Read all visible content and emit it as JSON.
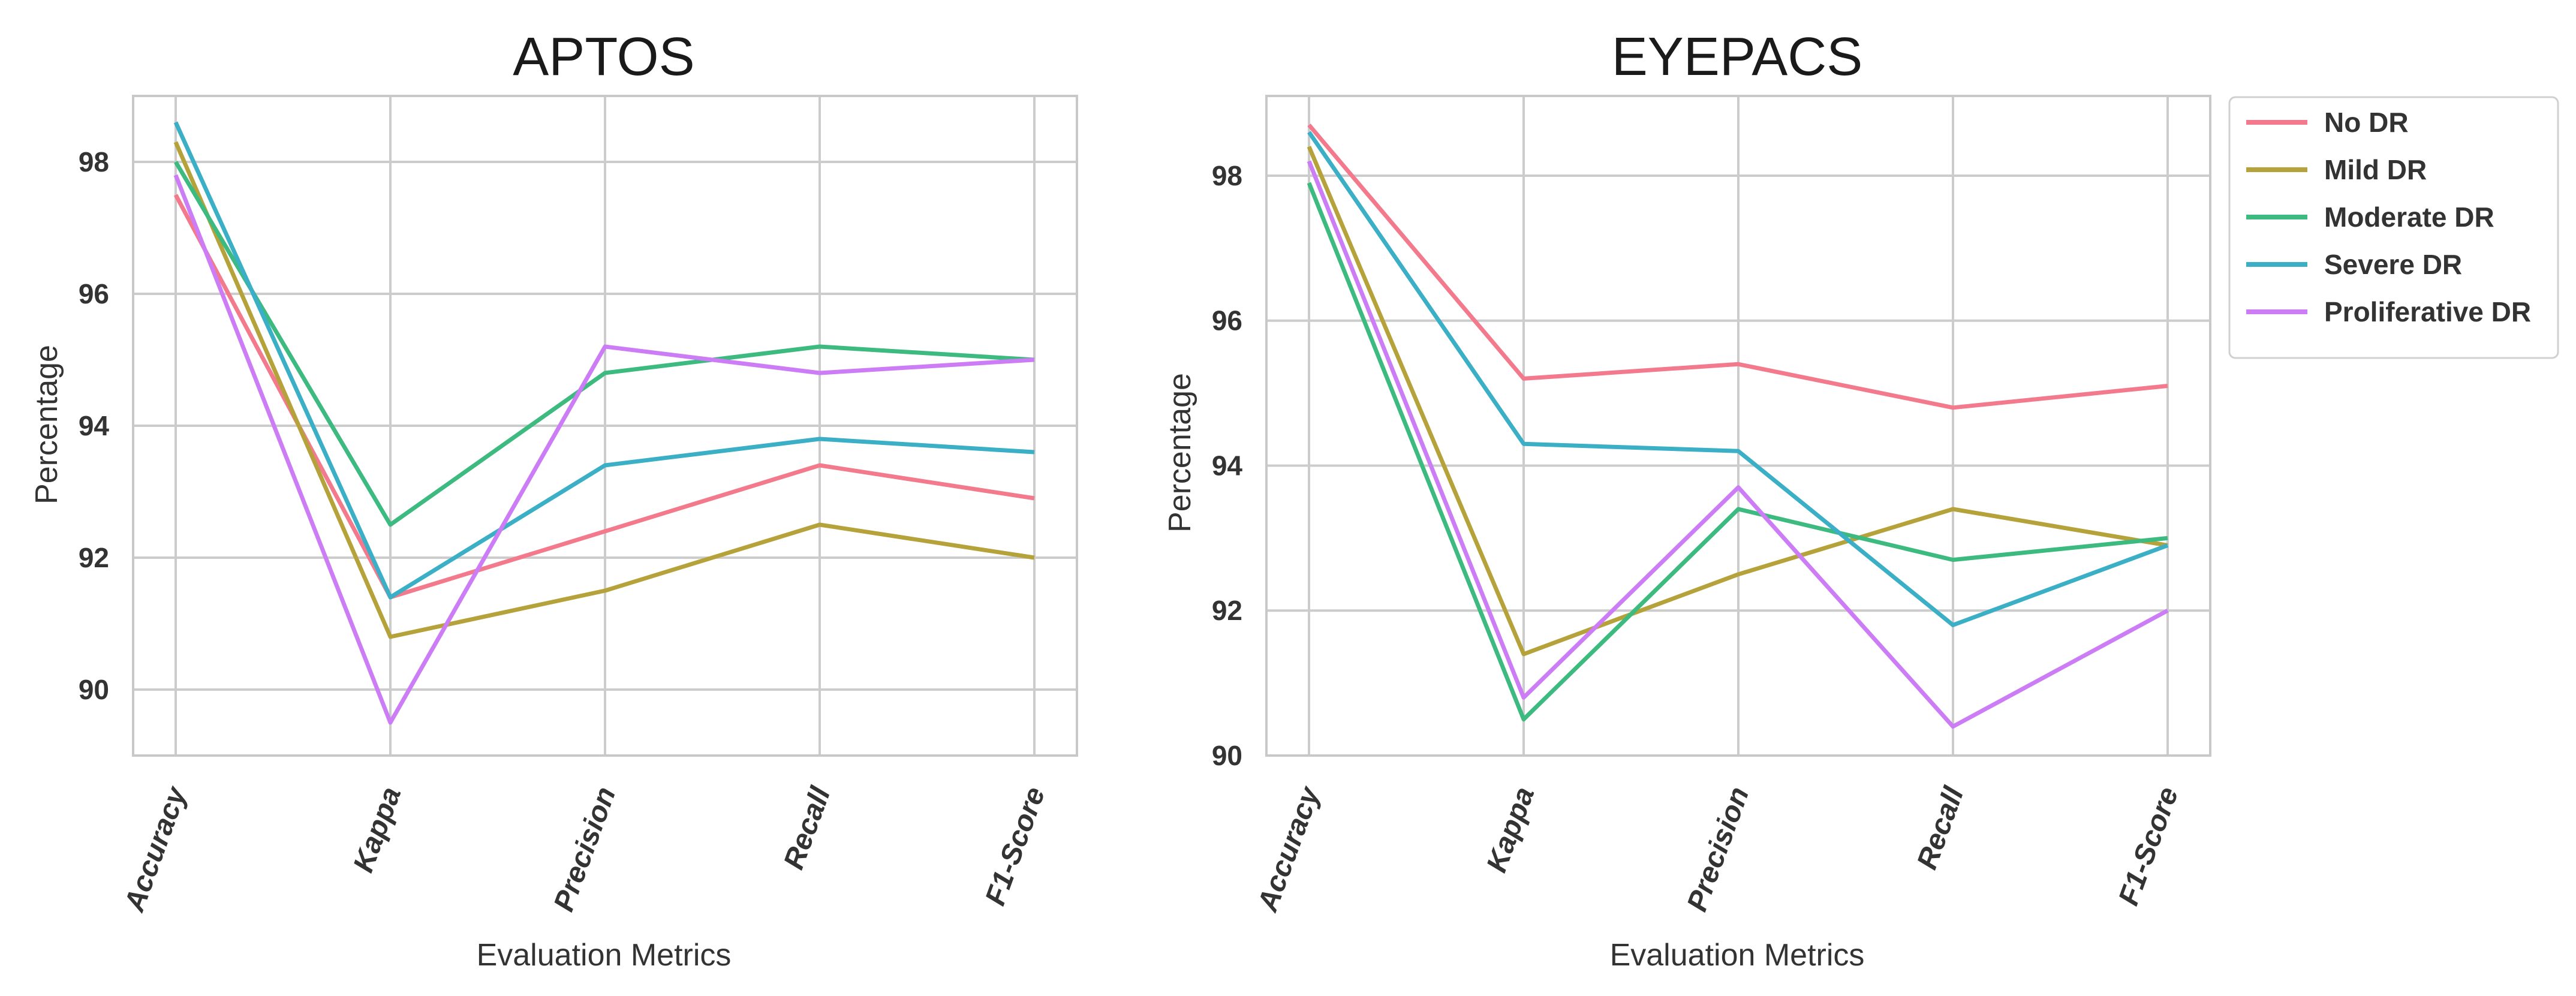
{
  "colors": {
    "No DR": "#f27a8c",
    "Mild DR": "#b5a23a",
    "Moderate DR": "#3dba7f",
    "Severe DR": "#3aafc6",
    "Proliferative DR": "#cc7cf5"
  },
  "chart_data": [
    {
      "type": "line",
      "title": "APTOS",
      "xlabel": "Evaluation Metrics",
      "ylabel": "Percentage",
      "categories": [
        "Accuracy",
        "Kappa",
        "Precision",
        "Recall",
        "F1-Score"
      ],
      "yticks": [
        "90",
        "92",
        "94",
        "96",
        "98"
      ],
      "ylim": [
        89.0,
        99.0
      ],
      "grid": true,
      "series": [
        {
          "name": "No DR",
          "values": [
            97.5,
            91.4,
            92.4,
            93.4,
            92.9
          ]
        },
        {
          "name": "Mild DR",
          "values": [
            98.3,
            90.8,
            91.5,
            92.5,
            92.0
          ]
        },
        {
          "name": "Moderate DR",
          "values": [
            98.0,
            92.5,
            94.8,
            95.2,
            95.0
          ]
        },
        {
          "name": "Severe DR",
          "values": [
            98.6,
            91.4,
            93.4,
            93.8,
            93.6
          ]
        },
        {
          "name": "Proliferative DR",
          "values": [
            97.8,
            89.5,
            95.2,
            94.8,
            95.0
          ]
        }
      ]
    },
    {
      "type": "line",
      "title": "EYEPACS",
      "xlabel": "Evaluation Metrics",
      "ylabel": "Percentage",
      "categories": [
        "Accuracy",
        "Kappa",
        "Precision",
        "Recall",
        "F1-Score"
      ],
      "yticks": [
        "90",
        "92",
        "94",
        "96",
        "98"
      ],
      "ylim": [
        90.0,
        99.1
      ],
      "grid": true,
      "legend": "outside-right",
      "series": [
        {
          "name": "No DR",
          "values": [
            98.7,
            95.2,
            95.4,
            94.8,
            95.1
          ]
        },
        {
          "name": "Mild DR",
          "values": [
            98.4,
            91.4,
            92.5,
            93.4,
            92.9
          ]
        },
        {
          "name": "Moderate DR",
          "values": [
            97.9,
            90.5,
            93.4,
            92.7,
            93.0
          ]
        },
        {
          "name": "Severe DR",
          "values": [
            98.6,
            94.3,
            94.2,
            91.8,
            92.9
          ]
        },
        {
          "name": "Proliferative DR",
          "values": [
            98.2,
            90.8,
            93.7,
            90.4,
            92.0
          ]
        }
      ]
    }
  ]
}
